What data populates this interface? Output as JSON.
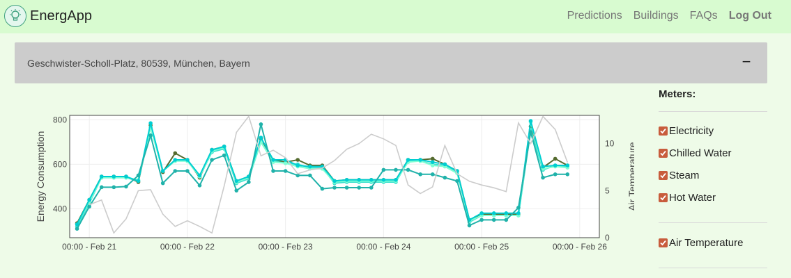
{
  "app": {
    "name": "EnergApp",
    "logo_icon": "lightbulb-icon",
    "nav": [
      {
        "label": "Predictions"
      },
      {
        "label": "Buildings"
      },
      {
        "label": "FAQs"
      },
      {
        "label": "Log Out"
      }
    ]
  },
  "building": {
    "address": "Geschwister-Scholl-Platz, 80539, München, Bayern",
    "collapse_symbol": "−"
  },
  "meters": {
    "title": "Meters:",
    "items": [
      {
        "label": "Electricity",
        "checked": true
      },
      {
        "label": "Chilled Water",
        "checked": true
      },
      {
        "label": "Steam",
        "checked": true
      },
      {
        "label": "Hot Water",
        "checked": true
      }
    ],
    "weather": {
      "label": "Air Temperature",
      "checked": true
    },
    "checkbox_color": "#c85c3c"
  },
  "chart_data": {
    "type": "line",
    "ylabel": "Energy Consumption",
    "y2label": "Air Temperature",
    "ylim": [
      270,
      820
    ],
    "y2lim": [
      0,
      13
    ],
    "yticks": [
      400,
      600,
      800
    ],
    "y2ticks": [
      0,
      5,
      10
    ],
    "xlim": [
      20.8,
      26.2
    ],
    "xticks": [
      {
        "value": 21,
        "label": "00:00 - Feb 21"
      },
      {
        "value": 22,
        "label": "00:00 - Feb 22"
      },
      {
        "value": 23,
        "label": "00:00 - Feb 23"
      },
      {
        "value": 24,
        "label": "00:00 - Feb 24"
      },
      {
        "value": 25,
        "label": "00:00 - Feb 25"
      },
      {
        "value": 26,
        "label": "00:00 - Feb 26"
      }
    ],
    "x": [
      20.875,
      21.0,
      21.125,
      21.25,
      21.375,
      21.5,
      21.625,
      21.75,
      21.875,
      22.0,
      22.125,
      22.25,
      22.375,
      22.5,
      22.625,
      22.75,
      22.875,
      23.0,
      23.125,
      23.25,
      23.375,
      23.5,
      23.625,
      23.75,
      23.875,
      24.0,
      24.125,
      24.25,
      24.375,
      24.5,
      24.625,
      24.75,
      24.875,
      25.0,
      25.125,
      25.25,
      25.375,
      25.5,
      25.625,
      25.75,
      25.875,
      26.0
    ],
    "series": [
      {
        "color": "#556b2f",
        "marker": true,
        "values": [
          335,
          440,
          545,
          545,
          545,
          520,
          775,
          565,
          650,
          620,
          540,
          665,
          680,
          525,
          545,
          715,
          620,
          610,
          620,
          595,
          595,
          525,
          530,
          530,
          530,
          530,
          530,
          620,
          620,
          625,
          600,
          570,
          350,
          375,
          375,
          375,
          375,
          770,
          585,
          625,
          595,
          null
        ]
      },
      {
        "color": "#40e0d0",
        "marker": true,
        "values": [
          320,
          425,
          540,
          540,
          540,
          525,
          765,
          570,
          615,
          615,
          545,
          655,
          670,
          515,
          535,
          700,
          615,
          605,
          600,
          585,
          585,
          515,
          520,
          520,
          520,
          520,
          520,
          615,
          615,
          600,
          595,
          565,
          340,
          370,
          370,
          370,
          370,
          755,
          575,
          595,
          590,
          null
        ]
      },
      {
        "color": "#7fffd4",
        "marker": true,
        "values": [
          330,
          430,
          540,
          540,
          540,
          530,
          765,
          570,
          615,
          615,
          545,
          660,
          675,
          520,
          540,
          700,
          610,
          605,
          590,
          580,
          580,
          520,
          525,
          525,
          525,
          525,
          525,
          610,
          615,
          595,
          590,
          560,
          345,
          370,
          370,
          370,
          370,
          790,
          580,
          590,
          585,
          null
        ]
      },
      {
        "color": "#00ced1",
        "marker": true,
        "values": [
          330,
          440,
          545,
          545,
          545,
          525,
          785,
          570,
          620,
          620,
          550,
          665,
          680,
          525,
          545,
          720,
          620,
          620,
          595,
          590,
          590,
          525,
          530,
          530,
          530,
          530,
          530,
          620,
          620,
          610,
          600,
          570,
          350,
          380,
          380,
          380,
          380,
          795,
          590,
          595,
          595,
          null
        ]
      },
      {
        "color": "#20b2aa",
        "marker": true,
        "values": [
          310,
          410,
          497,
          497,
          500,
          550,
          730,
          515,
          570,
          570,
          505,
          620,
          640,
          482,
          520,
          780,
          570,
          570,
          550,
          550,
          490,
          495,
          495,
          495,
          495,
          575,
          575,
          575,
          555,
          555,
          540,
          525,
          325,
          350,
          350,
          350,
          405,
          745,
          540,
          555,
          555,
          null
        ]
      },
      {
        "color": "#cccccc",
        "marker": false,
        "axis": "y2",
        "values": [
          null,
          3.5,
          4.0,
          0.5,
          2.0,
          5.0,
          5.1,
          2.5,
          1.2,
          1.8,
          1.2,
          0.5,
          5.5,
          11.2,
          12.9,
          8.7,
          9.3,
          8.5,
          6.8,
          7.2,
          7.4,
          8.2,
          9.4,
          10.0,
          11.0,
          10.5,
          9.8,
          5.6,
          4.7,
          5.4,
          9.8,
          6.8,
          6.0,
          5.6,
          5.3,
          4.9,
          12.2,
          10.0,
          12.9,
          11.5,
          8.0,
          null
        ]
      }
    ]
  }
}
